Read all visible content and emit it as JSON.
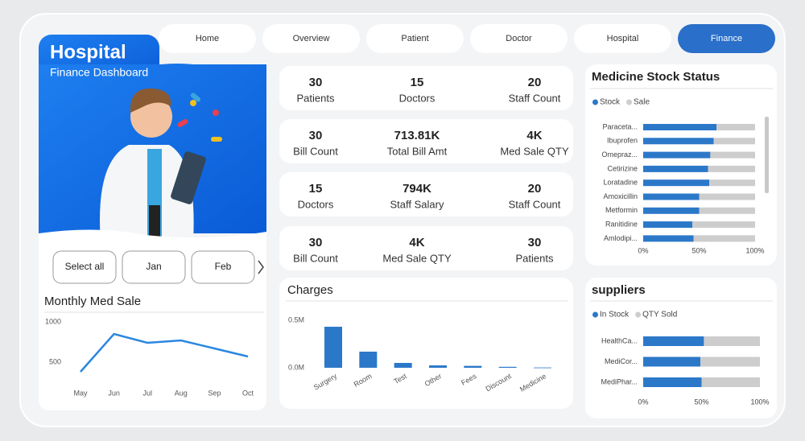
{
  "nav": [
    "Home",
    "Overview",
    "Patient",
    "Doctor",
    "Hospital",
    "Finance"
  ],
  "header": {
    "title": "Hospital",
    "subtitle": "Finance Dashboard"
  },
  "kpis": [
    [
      {
        "value": "30",
        "label": "Patients"
      },
      {
        "value": "15",
        "label": "Doctors"
      },
      {
        "value": "20",
        "label": "Staff Count"
      }
    ],
    [
      {
        "value": "30",
        "label": "Bill Count"
      },
      {
        "value": "713.81K",
        "label": "Total Bill Amt"
      },
      {
        "value": "4K",
        "label": "Med Sale QTY"
      }
    ],
    [
      {
        "value": "15",
        "label": "Doctors"
      },
      {
        "value": "794K",
        "label": "Staff Salary"
      },
      {
        "value": "20",
        "label": "Staff Count"
      }
    ],
    [
      {
        "value": "30",
        "label": "Bill Count"
      },
      {
        "value": "4K",
        "label": "Med Sale QTY"
      },
      {
        "value": "30",
        "label": "Patients"
      }
    ]
  ],
  "slicer": [
    "Select all",
    "Jan",
    "Feb"
  ],
  "chart_data": [
    {
      "type": "line",
      "title": "Monthly Med Sale",
      "categories": [
        "May",
        "Jun",
        "Jul",
        "Aug",
        "Sep",
        "Oct"
      ],
      "values": [
        380,
        850,
        740,
        770,
        670,
        570
      ],
      "color": "#2a87e0",
      "ylim": [
        200,
        1050
      ],
      "yticks": [
        500,
        1000
      ]
    },
    {
      "type": "bar",
      "title": "Charges",
      "categories": [
        "Surgery",
        "Room",
        "Test",
        "Other",
        "Fees",
        "Discount",
        "Medicine"
      ],
      "values": [
        432000,
        170000,
        51000,
        25000,
        20000,
        10000,
        3000
      ],
      "color": "#2b78c9",
      "ylim": [
        0,
        550000
      ],
      "yticks": [
        {
          "value": 0,
          "label": "0.0M"
        },
        {
          "value": 500000,
          "label": "0.5M"
        }
      ]
    },
    {
      "type": "bar",
      "orientation": "horizontal",
      "stacked": true,
      "title": "Medicine Stock Status",
      "categories": [
        "Paraceta...",
        "Ibuprofen",
        "Omepraz...",
        "Cetirizine",
        "Loratadine",
        "Amoxicillin",
        "Metformin",
        "Ranitidine",
        "Amlodipi..."
      ],
      "series": [
        {
          "name": "Stock",
          "color": "#2b78c9",
          "values": [
            65.5,
            63,
            60,
            58,
            59,
            50,
            50,
            44,
            45
          ]
        },
        {
          "name": "Sale",
          "color": "#cdcdcd",
          "values": [
            34.5,
            37,
            40,
            42,
            41,
            50,
            50,
            56,
            55
          ]
        }
      ],
      "xlim": [
        0,
        100
      ],
      "xticks": [
        {
          "value": 0,
          "label": "0%"
        },
        {
          "value": 50,
          "label": "50%"
        },
        {
          "value": 100,
          "label": "100%"
        }
      ]
    },
    {
      "type": "bar",
      "orientation": "horizontal",
      "stacked": true,
      "title": "suppliers",
      "categories": [
        "HealthCa...",
        "MediCor...",
        "MediPhar..."
      ],
      "series": [
        {
          "name": "In Stock",
          "color": "#2b78c9",
          "values": [
            52,
            49,
            50
          ]
        },
        {
          "name": "QTY Sold",
          "color": "#cdcdcd",
          "values": [
            48,
            51,
            50
          ]
        }
      ],
      "xlim": [
        0,
        100
      ],
      "xticks": [
        {
          "value": 0,
          "label": "0%"
        },
        {
          "value": 50,
          "label": "50%"
        },
        {
          "value": 100,
          "label": "100%"
        }
      ]
    }
  ]
}
